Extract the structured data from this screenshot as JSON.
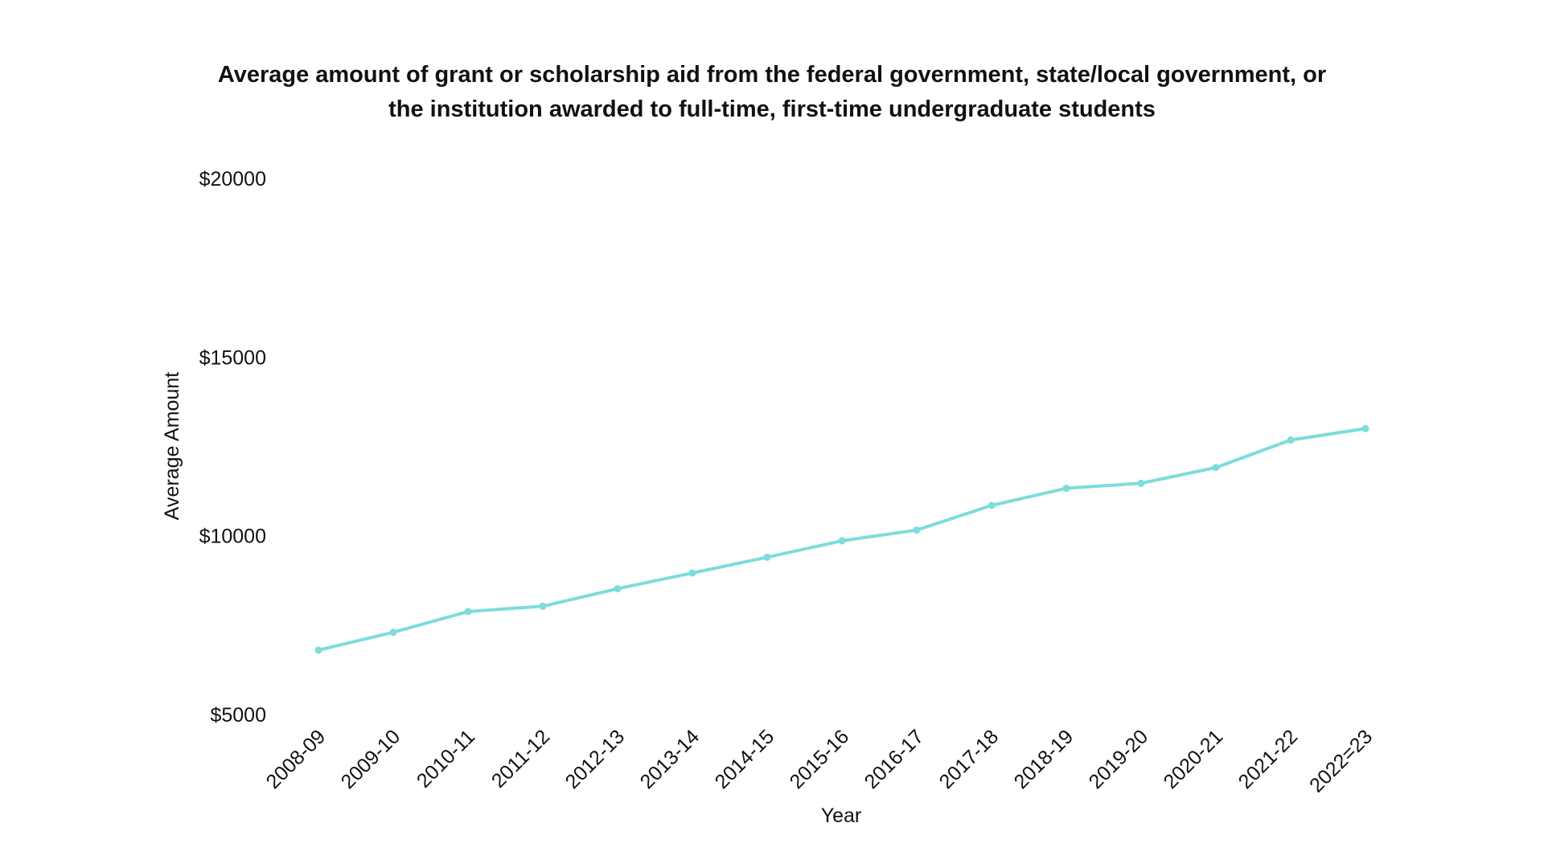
{
  "chart_data": {
    "type": "line",
    "title_lines": [
      "Average amount of grant or scholarship aid from the federal government, state/local government, or",
      "the institution awarded to full-time, first-time undergraduate students"
    ],
    "xlabel": "Year",
    "ylabel": "Average Amount",
    "categories": [
      "2008-09",
      "2009-10",
      "2010-11",
      "2011-12",
      "2012-13",
      "2013-14",
      "2014-15",
      "2015-16",
      "2016-17",
      "2017-18",
      "2018-19",
      "2019-20",
      "2020-21",
      "2021-22",
      "2022=23"
    ],
    "series": [
      {
        "values": [
          6800,
          7300,
          7880,
          8030,
          8520,
          8960,
          9400,
          9860,
          10160,
          10850,
          11330,
          11470,
          11910,
          12680,
          13000
        ],
        "color": "#7ddcdc"
      }
    ],
    "y_ticks": [
      5000,
      10000,
      15000,
      20000
    ],
    "y_tick_labels": [
      "$5000",
      "$10000",
      "$15000",
      "$20000"
    ],
    "ylim": [
      5000,
      20000
    ],
    "grid": false,
    "legend": "none"
  }
}
